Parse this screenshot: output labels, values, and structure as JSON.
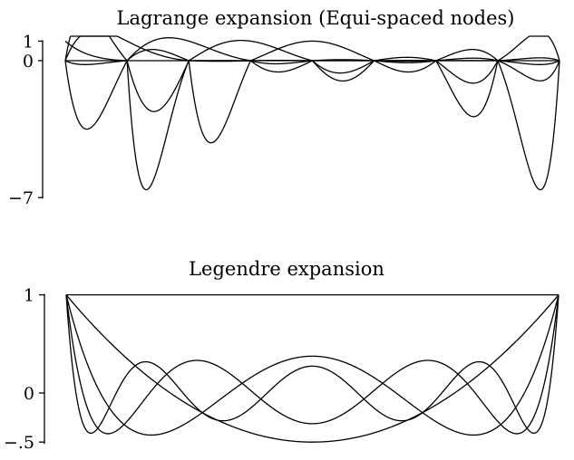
{
  "chart_data": [
    {
      "type": "line",
      "title": "Lagrange expansion (Equi-spaced nodes)",
      "xlim": [
        -1,
        1
      ],
      "ylim": [
        -7,
        1
      ],
      "yticks": [
        {
          "value": 1,
          "label": "1"
        },
        {
          "value": 0,
          "label": "0"
        },
        {
          "value": -7,
          "label": "-7"
        }
      ],
      "nodes": 9,
      "series_count": 5,
      "min_values": [
        -6.6,
        -4.2,
        -3.5,
        -2.6,
        -0.2
      ]
    },
    {
      "type": "line",
      "title": "Legendre expansion",
      "xlim": [
        -1,
        1
      ],
      "ylim": [
        -0.5,
        1
      ],
      "yticks": [
        {
          "value": 1,
          "label": "1"
        },
        {
          "value": 0,
          "label": "0"
        },
        {
          "value": -0.5,
          "label": "-.5"
        }
      ],
      "degrees": [
        0,
        2,
        4,
        6,
        8
      ]
    }
  ]
}
